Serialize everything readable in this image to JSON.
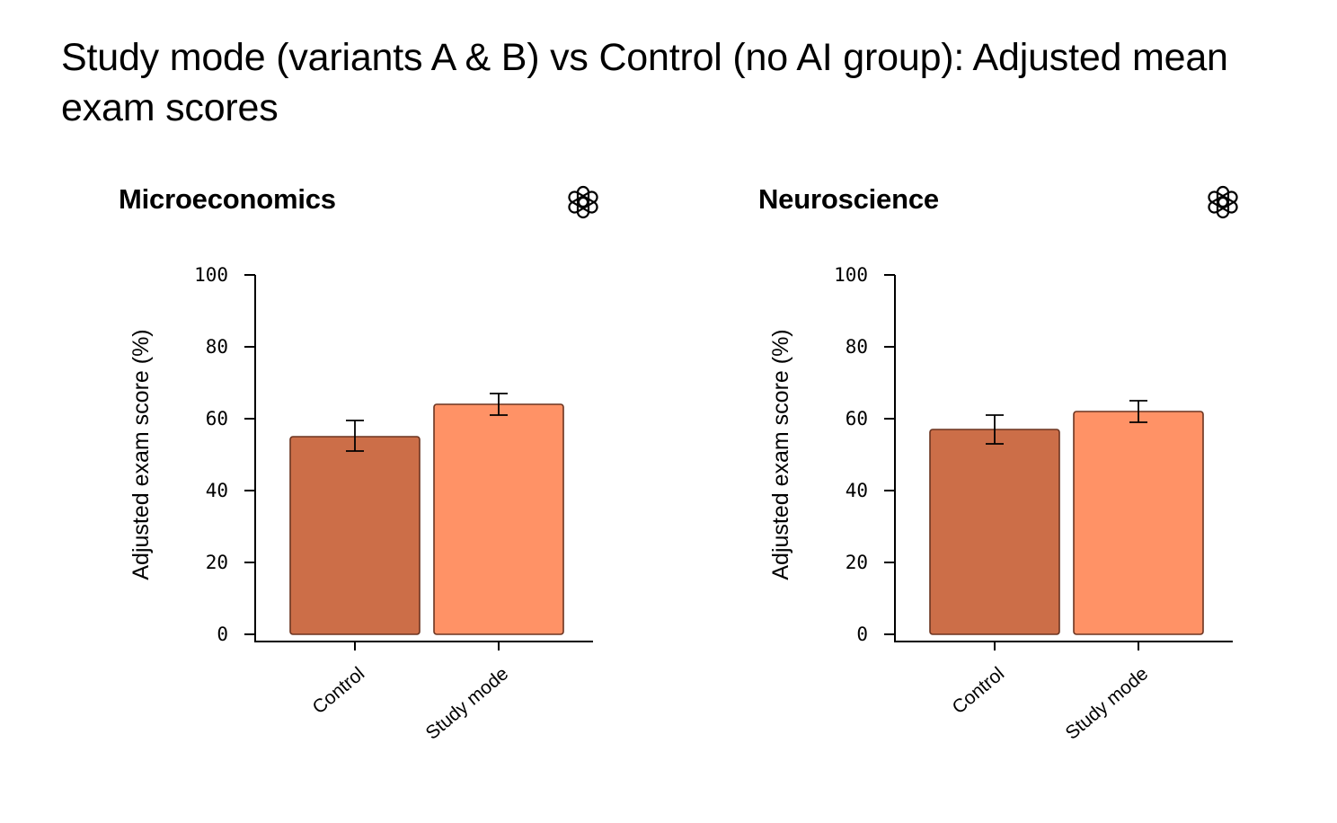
{
  "title": "Study mode (variants A & B) vs Control (no AI group): Adjusted mean exam scores",
  "icons": {
    "panel_logo": "openai-logo-icon"
  },
  "chart_data": [
    {
      "type": "bar",
      "title": "Microeconomics",
      "categories": [
        "Control",
        "Study mode"
      ],
      "values": [
        55,
        64
      ],
      "error_low": [
        51,
        61
      ],
      "error_high": [
        59.5,
        67
      ],
      "ylabel": "Adjusted exam score (%)",
      "xlabel": "",
      "ylim": [
        0,
        100
      ],
      "yticks": [
        0,
        20,
        40,
        60,
        80,
        100
      ],
      "colors": [
        "#CC6E48",
        "#FF9266"
      ],
      "grid": false
    },
    {
      "type": "bar",
      "title": "Neuroscience",
      "categories": [
        "Control",
        "Study mode"
      ],
      "values": [
        57,
        62
      ],
      "error_low": [
        53,
        59
      ],
      "error_high": [
        61,
        65
      ],
      "ylabel": "Adjusted exam score (%)",
      "xlabel": "",
      "ylim": [
        0,
        100
      ],
      "yticks": [
        0,
        20,
        40,
        60,
        80,
        100
      ],
      "colors": [
        "#CC6E48",
        "#FF9266"
      ],
      "grid": false
    }
  ]
}
